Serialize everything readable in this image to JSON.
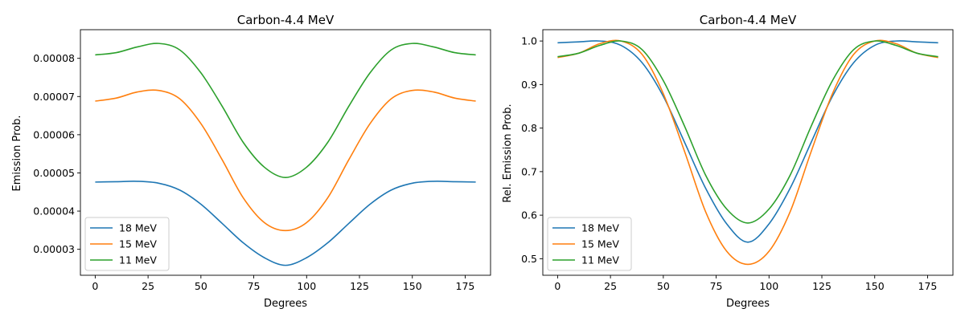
{
  "chart_data": [
    {
      "type": "line",
      "title": "Carbon-4.4 MeV",
      "xlabel": "Degrees",
      "ylabel": "Emission Prob.",
      "xlim": [
        -7,
        187
      ],
      "ylim": [
        2.32e-05,
        8.75e-05
      ],
      "xticks": [
        0,
        25,
        50,
        75,
        100,
        125,
        150,
        175
      ],
      "xtick_labels": [
        "0",
        "25",
        "50",
        "75",
        "100",
        "125",
        "150",
        "175"
      ],
      "yticks": [
        3e-05,
        4e-05,
        5e-05,
        6e-05,
        7e-05,
        8e-05
      ],
      "ytick_labels": [
        "0.00003",
        "0.00004",
        "0.00005",
        "0.00006",
        "0.00007",
        "0.00008"
      ],
      "legend_position": "lower-left",
      "grid": false,
      "x": [
        0,
        10,
        20,
        30,
        40,
        50,
        60,
        70,
        80,
        90,
        100,
        110,
        120,
        130,
        140,
        150,
        160,
        170,
        180
      ],
      "series": [
        {
          "name": "18 MeV",
          "color": "#1f77b4",
          "values": [
            4.76e-05,
            4.77e-05,
            4.78e-05,
            4.73e-05,
            4.55e-05,
            4.18e-05,
            3.68e-05,
            3.17e-05,
            2.78e-05,
            2.58e-05,
            2.78e-05,
            3.17e-05,
            3.68e-05,
            4.18e-05,
            4.55e-05,
            4.73e-05,
            4.78e-05,
            4.77e-05,
            4.76e-05
          ]
        },
        {
          "name": "15 MeV",
          "color": "#ff7f0e",
          "values": [
            6.88e-05,
            6.96e-05,
            7.12e-05,
            7.16e-05,
            6.94e-05,
            6.29e-05,
            5.35e-05,
            4.35e-05,
            3.7e-05,
            3.49e-05,
            3.7e-05,
            4.35e-05,
            5.35e-05,
            6.29e-05,
            6.94e-05,
            7.16e-05,
            7.12e-05,
            6.96e-05,
            6.88e-05
          ]
        },
        {
          "name": "11 MeV",
          "color": "#2ca02c",
          "values": [
            8.09e-05,
            8.15e-05,
            8.3e-05,
            8.39e-05,
            8.22e-05,
            7.62e-05,
            6.75e-05,
            5.8e-05,
            5.15e-05,
            4.88e-05,
            5.15e-05,
            5.8e-05,
            6.75e-05,
            7.62e-05,
            8.22e-05,
            8.39e-05,
            8.3e-05,
            8.15e-05,
            8.09e-05
          ]
        }
      ]
    },
    {
      "type": "line",
      "title": "Carbon-4.4 MeV",
      "xlabel": "Degrees",
      "ylabel": "Rel. Emission Prob.",
      "xlim": [
        -7,
        187
      ],
      "ylim": [
        0.462,
        1.026
      ],
      "xticks": [
        0,
        25,
        50,
        75,
        100,
        125,
        150,
        175
      ],
      "xtick_labels": [
        "0",
        "25",
        "50",
        "75",
        "100",
        "125",
        "150",
        "175"
      ],
      "yticks": [
        0.5,
        0.6,
        0.7,
        0.8,
        0.9,
        1.0
      ],
      "ytick_labels": [
        "0.5",
        "0.6",
        "0.7",
        "0.8",
        "0.9",
        "1.0"
      ],
      "legend_position": "lower-left",
      "grid": false,
      "x": [
        0,
        10,
        20,
        30,
        40,
        50,
        60,
        70,
        80,
        90,
        100,
        110,
        120,
        130,
        140,
        150,
        160,
        170,
        180
      ],
      "series": [
        {
          "name": "18 MeV",
          "color": "#1f77b4",
          "values": [
            0.996,
            0.998,
            1.0,
            0.99,
            0.95,
            0.873,
            0.768,
            0.662,
            0.58,
            0.538,
            0.58,
            0.662,
            0.768,
            0.873,
            0.95,
            0.99,
            1.0,
            0.998,
            0.996
          ]
        },
        {
          "name": "15 MeV",
          "color": "#ff7f0e",
          "values": [
            0.962,
            0.972,
            0.994,
            1.0,
            0.969,
            0.879,
            0.747,
            0.608,
            0.517,
            0.487,
            0.517,
            0.608,
            0.747,
            0.879,
            0.969,
            1.0,
            0.994,
            0.972,
            0.962
          ]
        },
        {
          "name": "11 MeV",
          "color": "#2ca02c",
          "values": [
            0.964,
            0.972,
            0.99,
            1.0,
            0.98,
            0.909,
            0.805,
            0.692,
            0.614,
            0.582,
            0.614,
            0.692,
            0.805,
            0.909,
            0.98,
            1.0,
            0.99,
            0.972,
            0.964
          ]
        }
      ]
    }
  ]
}
